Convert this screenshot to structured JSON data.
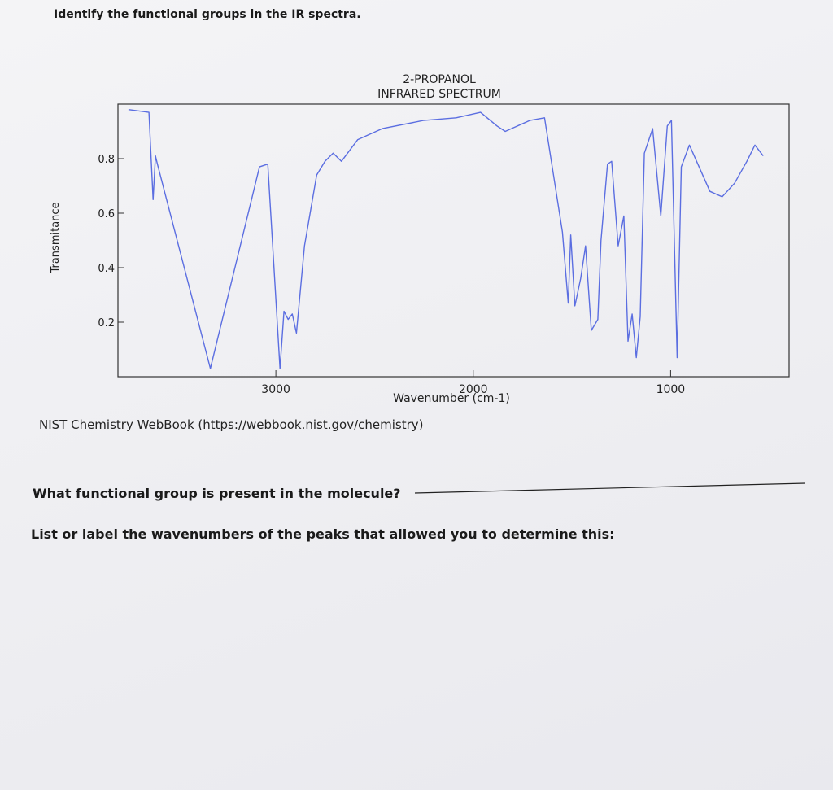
{
  "header": {
    "title": "Identify the functional groups in the IR spectra."
  },
  "chart_data": {
    "type": "line",
    "title": "2-PROPANOL",
    "subtitle": "INFRARED SPECTRUM",
    "xlabel": "Wavenumber (cm-1)",
    "ylabel": "Transmitance",
    "x": [
      3747,
      3643,
      3622,
      3610,
      3600,
      3332,
      3083,
      3041,
      2979,
      2959,
      2938,
      2917,
      2896,
      2855,
      2793,
      2751,
      2710,
      2668,
      2585,
      2461,
      2253,
      2087,
      1963,
      1880,
      1838,
      1714,
      1639,
      1548,
      1519,
      1506,
      1485,
      1456,
      1431,
      1402,
      1369,
      1353,
      1320,
      1299,
      1266,
      1237,
      1216,
      1195,
      1174,
      1154,
      1133,
      1091,
      1050,
      1017,
      996,
      967,
      946,
      905,
      801,
      739,
      676,
      614,
      573,
      531
    ],
    "series": [
      {
        "name": "2-Propanol",
        "color": "#5b6ee1",
        "values": [
          0.98,
          0.97,
          0.65,
          0.81,
          0.78,
          0.03,
          0.77,
          0.78,
          0.03,
          0.24,
          0.21,
          0.23,
          0.16,
          0.48,
          0.74,
          0.79,
          0.82,
          0.79,
          0.87,
          0.91,
          0.94,
          0.95,
          0.97,
          0.92,
          0.9,
          0.94,
          0.95,
          0.53,
          0.27,
          0.52,
          0.26,
          0.36,
          0.48,
          0.17,
          0.21,
          0.5,
          0.78,
          0.79,
          0.48,
          0.59,
          0.13,
          0.23,
          0.07,
          0.22,
          0.82,
          0.91,
          0.59,
          0.92,
          0.94,
          0.07,
          0.77,
          0.85,
          0.68,
          0.66,
          0.71,
          0.79,
          0.85,
          0.81
        ]
      }
    ],
    "xlim": [
      3800,
      400
    ],
    "xticks": [
      3000,
      2000,
      1000
    ],
    "ylim": [
      0,
      1
    ],
    "yticks": [
      0.2,
      0.4,
      0.6,
      0.8
    ]
  },
  "source": "NIST Chemistry WebBook (https://webbook.nist.gov/chemistry)",
  "questions": [
    "What functional group is present in the molecule?",
    "List or label the wavenumbers of the peaks that allowed you to determine this:"
  ]
}
